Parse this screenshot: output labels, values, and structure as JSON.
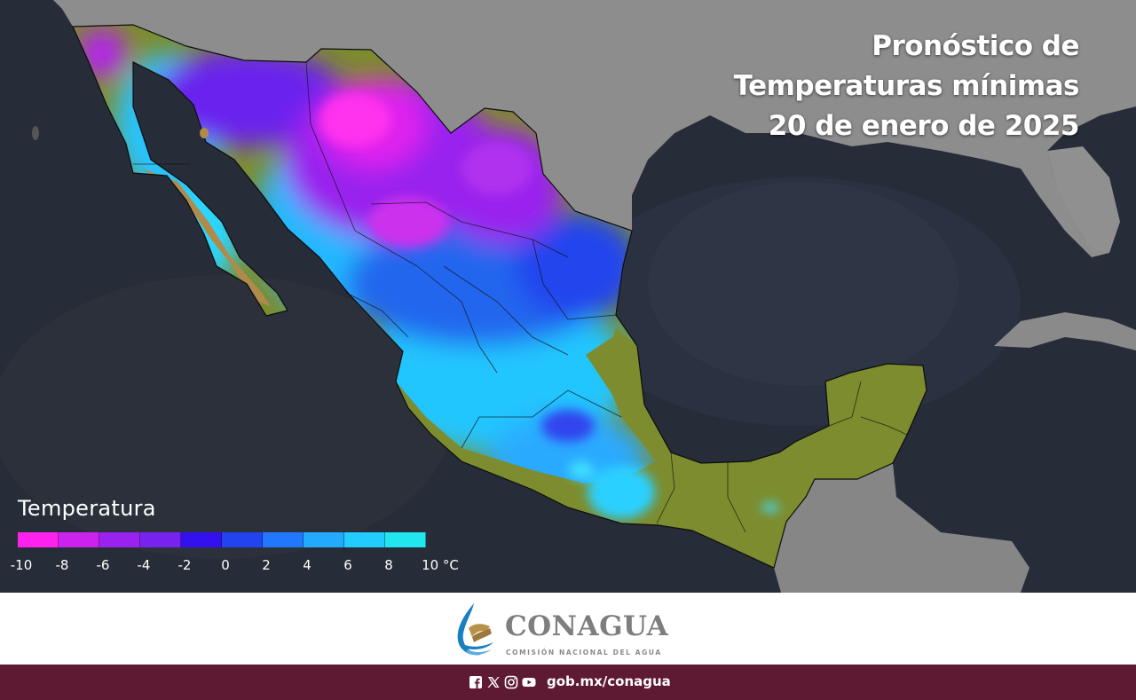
{
  "title": {
    "line1": "Pronóstico de",
    "line2": "Temperaturas mínimas",
    "line3": "20 de enero de 2025"
  },
  "legend": {
    "title": "Temperatura",
    "unit": "°C",
    "tick_labels": [
      "-10",
      "-8",
      "-6",
      "-4",
      "-2",
      "0",
      "2",
      "4",
      "6",
      "8",
      "10 °C"
    ],
    "colors": [
      "#ff22ee",
      "#cc22ee",
      "#9922ee",
      "#7722ee",
      "#3311ee",
      "#2244ee",
      "#2277ff",
      "#22aaff",
      "#22ccff",
      "#22e6ee"
    ]
  },
  "colors": {
    "ocean": "#262c38",
    "us_land": "#8a8a8a",
    "mx_outline": "#111111",
    "warm_land": "#7d8c2e",
    "footer": "#5e1a32"
  },
  "logo": {
    "name": "CONAGUA",
    "subtitle": "COMISIÓN NACIONAL DEL AGUA"
  },
  "footer": {
    "social_icons": [
      "facebook-icon",
      "x-icon",
      "instagram-icon",
      "youtube-icon"
    ],
    "url": "gob.mx/conagua"
  }
}
